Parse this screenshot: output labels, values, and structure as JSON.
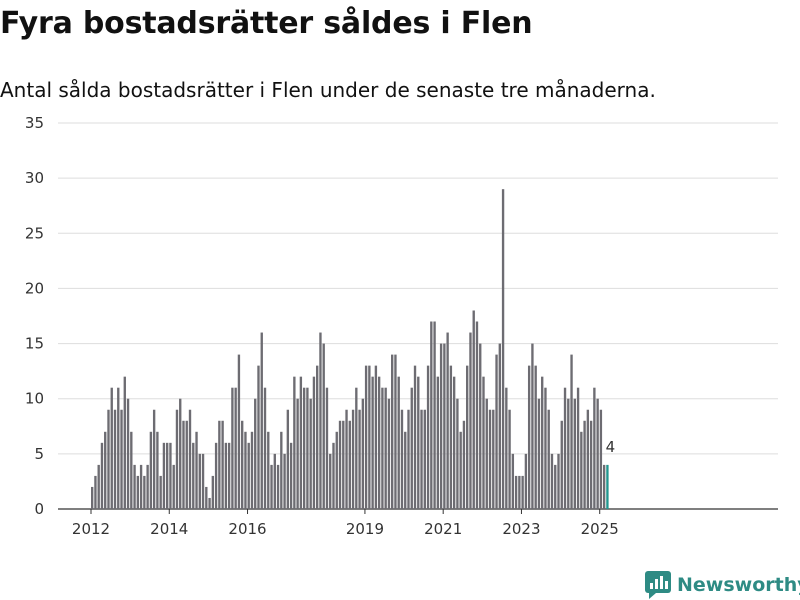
{
  "title": "Fyra bostadsrätter såldes i Flen",
  "subtitle": "Antal sålda bostadsrätter i Flen under de senaste tre månaderna.",
  "brand": "Newsworthy",
  "colors": {
    "bar": "#6d6c72",
    "highlight": "#23978f",
    "grid": "#dddddd",
    "brand": "#2e8b84"
  },
  "chart_data": {
    "type": "bar",
    "title": "",
    "xlabel": "",
    "ylabel": "",
    "ylim": [
      0,
      35
    ],
    "yticks": [
      0,
      5,
      10,
      15,
      20,
      25,
      30,
      35
    ],
    "xtick_labels": [
      "2012",
      "2014",
      "2016",
      "2019",
      "2021",
      "2023",
      "2025"
    ],
    "grid": true,
    "start": "2012-01",
    "interval": "month",
    "values": [
      2,
      3,
      4,
      6,
      7,
      9,
      11,
      9,
      11,
      9,
      12,
      10,
      7,
      4,
      3,
      4,
      3,
      4,
      7,
      9,
      7,
      3,
      6,
      6,
      6,
      4,
      9,
      10,
      8,
      8,
      9,
      6,
      7,
      5,
      5,
      2,
      1,
      3,
      6,
      8,
      8,
      6,
      6,
      11,
      11,
      14,
      8,
      7,
      6,
      7,
      10,
      13,
      16,
      11,
      7,
      4,
      5,
      4,
      7,
      5,
      9,
      6,
      12,
      10,
      12,
      11,
      11,
      10,
      12,
      13,
      16,
      15,
      11,
      5,
      6,
      7,
      8,
      8,
      9,
      8,
      9,
      11,
      9,
      10,
      13,
      13,
      12,
      13,
      12,
      11,
      11,
      10,
      14,
      14,
      12,
      9,
      7,
      9,
      11,
      13,
      12,
      9,
      9,
      13,
      17,
      17,
      12,
      15,
      15,
      16,
      13,
      12,
      10,
      7,
      8,
      13,
      16,
      18,
      17,
      15,
      12,
      10,
      9,
      9,
      14,
      15,
      29,
      11,
      9,
      5,
      3,
      3,
      3,
      5,
      13,
      15,
      13,
      10,
      12,
      11,
      9,
      5,
      4,
      5,
      8,
      11,
      10,
      14,
      10,
      11,
      7,
      8,
      9,
      8,
      11,
      10,
      9,
      4,
      4
    ],
    "highlight_last": 1,
    "annotations": [
      {
        "label": "4"
      }
    ]
  }
}
